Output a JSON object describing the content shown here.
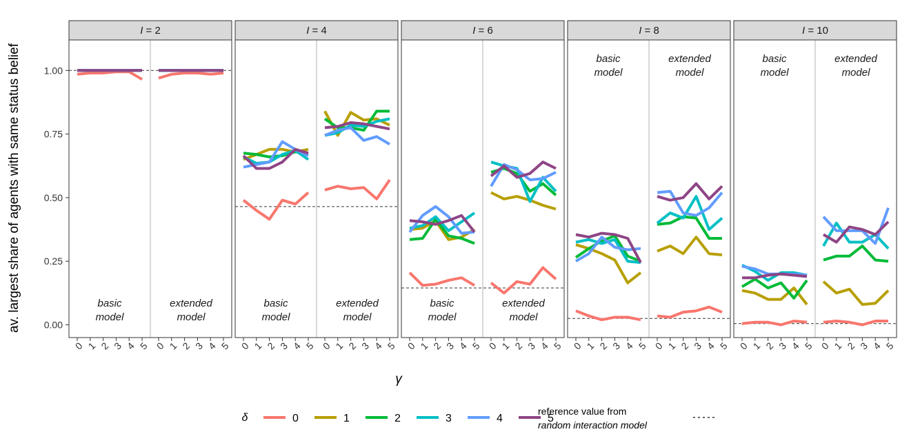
{
  "chart_data": {
    "type": "line",
    "ylabel": "av. largest share of agents with same status belief",
    "xlabel": "γ",
    "ylim": [
      -0.05,
      1.12
    ],
    "yticks": [
      0.0,
      0.25,
      0.5,
      0.75,
      1.0
    ],
    "ytick_labels": [
      "0.00",
      "0.25",
      "0.50",
      "0.75",
      "1.00"
    ],
    "x": [
      0,
      1,
      2,
      3,
      4,
      5
    ],
    "grid": false,
    "legend": {
      "position": "bottom",
      "title": "δ",
      "entries": [
        {
          "name": "0",
          "color": "#F8766D"
        },
        {
          "name": "1",
          "color": "#B79F00"
        },
        {
          "name": "2",
          "color": "#00BA38"
        },
        {
          "name": "3",
          "color": "#00BFC4"
        },
        {
          "name": "4",
          "color": "#619CFF"
        },
        {
          "name": "5",
          "color": "#8E4585"
        }
      ],
      "reference_label_line1": "reference value from",
      "reference_label_line2": "random interaction model"
    },
    "panels": [
      {
        "strip_prefix": "I",
        "strip_value": "= 2",
        "reference": 1.0,
        "label_position": "bottom",
        "submodels": [
          {
            "label_line1": "basic",
            "label_line2": "model",
            "series": [
              {
                "name": "0",
                "values": [
                  0.985,
                  0.99,
                  0.99,
                  0.995,
                  0.995,
                  0.965
                ]
              },
              {
                "name": "1",
                "values": [
                  1.0,
                  1.0,
                  1.0,
                  1.0,
                  1.0,
                  1.0
                ]
              },
              {
                "name": "2",
                "values": [
                  1.0,
                  1.0,
                  1.0,
                  1.0,
                  1.0,
                  1.0
                ]
              },
              {
                "name": "3",
                "values": [
                  1.0,
                  1.0,
                  1.0,
                  1.0,
                  1.0,
                  1.0
                ]
              },
              {
                "name": "4",
                "values": [
                  1.0,
                  1.0,
                  1.0,
                  1.0,
                  1.0,
                  1.0
                ]
              },
              {
                "name": "5",
                "values": [
                  1.0,
                  1.0,
                  1.0,
                  1.0,
                  1.0,
                  1.0
                ]
              }
            ]
          },
          {
            "label_line1": "extended",
            "label_line2": "model",
            "series": [
              {
                "name": "0",
                "values": [
                  0.97,
                  0.985,
                  0.99,
                  0.99,
                  0.985,
                  0.99
                ]
              },
              {
                "name": "1",
                "values": [
                  1.0,
                  1.0,
                  1.0,
                  1.0,
                  1.0,
                  1.0
                ]
              },
              {
                "name": "2",
                "values": [
                  1.0,
                  1.0,
                  1.0,
                  1.0,
                  1.0,
                  1.0
                ]
              },
              {
                "name": "3",
                "values": [
                  1.0,
                  1.0,
                  1.0,
                  1.0,
                  1.0,
                  1.0
                ]
              },
              {
                "name": "4",
                "values": [
                  1.0,
                  1.0,
                  1.0,
                  1.0,
                  1.0,
                  1.0
                ]
              },
              {
                "name": "5",
                "values": [
                  1.0,
                  1.0,
                  1.0,
                  1.0,
                  1.0,
                  1.0
                ]
              }
            ]
          }
        ]
      },
      {
        "strip_prefix": "I",
        "strip_value": "= 4",
        "reference": 0.465,
        "label_position": "bottom",
        "submodels": [
          {
            "label_line1": "basic",
            "label_line2": "model",
            "series": [
              {
                "name": "0",
                "values": [
                  0.49,
                  0.45,
                  0.415,
                  0.49,
                  0.475,
                  0.52
                ]
              },
              {
                "name": "1",
                "values": [
                  0.65,
                  0.67,
                  0.69,
                  0.69,
                  0.68,
                  0.69
                ]
              },
              {
                "name": "2",
                "values": [
                  0.675,
                  0.67,
                  0.66,
                  0.665,
                  0.68,
                  0.675
                ]
              },
              {
                "name": "3",
                "values": [
                  0.66,
                  0.635,
                  0.64,
                  0.67,
                  0.685,
                  0.65
                ]
              },
              {
                "name": "4",
                "values": [
                  0.62,
                  0.63,
                  0.64,
                  0.72,
                  0.69,
                  0.665
                ]
              },
              {
                "name": "5",
                "values": [
                  0.665,
                  0.615,
                  0.615,
                  0.64,
                  0.69,
                  0.675
                ]
              }
            ]
          },
          {
            "label_line1": "extended",
            "label_line2": "model",
            "series": [
              {
                "name": "0",
                "values": [
                  0.53,
                  0.545,
                  0.535,
                  0.54,
                  0.495,
                  0.57
                ]
              },
              {
                "name": "1",
                "values": [
                  0.84,
                  0.745,
                  0.835,
                  0.805,
                  0.81,
                  0.785
                ]
              },
              {
                "name": "2",
                "values": [
                  0.81,
                  0.775,
                  0.775,
                  0.765,
                  0.84,
                  0.84
                ]
              },
              {
                "name": "3",
                "values": [
                  0.745,
                  0.755,
                  0.785,
                  0.78,
                  0.8,
                  0.81
                ]
              },
              {
                "name": "4",
                "values": [
                  0.745,
                  0.765,
                  0.775,
                  0.725,
                  0.74,
                  0.71
                ]
              },
              {
                "name": "5",
                "values": [
                  0.775,
                  0.78,
                  0.795,
                  0.79,
                  0.78,
                  0.77
                ]
              }
            ]
          }
        ]
      },
      {
        "strip_prefix": "I",
        "strip_value": "= 6",
        "reference": 0.145,
        "label_position": "bottom",
        "submodels": [
          {
            "label_line1": "basic",
            "label_line2": "model",
            "series": [
              {
                "name": "0",
                "values": [
                  0.205,
                  0.155,
                  0.16,
                  0.175,
                  0.185,
                  0.155
                ]
              },
              {
                "name": "1",
                "values": [
                  0.375,
                  0.38,
                  0.41,
                  0.335,
                  0.345,
                  0.375
                ]
              },
              {
                "name": "2",
                "values": [
                  0.335,
                  0.34,
                  0.415,
                  0.35,
                  0.34,
                  0.32
                ]
              },
              {
                "name": "3",
                "values": [
                  0.38,
                  0.39,
                  0.425,
                  0.37,
                  0.405,
                  0.44
                ]
              },
              {
                "name": "4",
                "values": [
                  0.365,
                  0.43,
                  0.465,
                  0.425,
                  0.36,
                  0.365
                ]
              },
              {
                "name": "5",
                "values": [
                  0.41,
                  0.405,
                  0.395,
                  0.41,
                  0.43,
                  0.365
                ]
              }
            ]
          },
          {
            "label_line1": "extended",
            "label_line2": "model",
            "series": [
              {
                "name": "0",
                "values": [
                  0.165,
                  0.125,
                  0.17,
                  0.16,
                  0.225,
                  0.18
                ]
              },
              {
                "name": "1",
                "values": [
                  0.52,
                  0.495,
                  0.505,
                  0.49,
                  0.47,
                  0.455
                ]
              },
              {
                "name": "2",
                "values": [
                  0.6,
                  0.615,
                  0.595,
                  0.525,
                  0.555,
                  0.51
                ]
              },
              {
                "name": "3",
                "values": [
                  0.64,
                  0.625,
                  0.615,
                  0.485,
                  0.58,
                  0.525
                ]
              },
              {
                "name": "4",
                "values": [
                  0.545,
                  0.63,
                  0.61,
                  0.57,
                  0.575,
                  0.6
                ]
              },
              {
                "name": "5",
                "values": [
                  0.585,
                  0.625,
                  0.58,
                  0.595,
                  0.64,
                  0.615
                ]
              }
            ]
          }
        ]
      },
      {
        "strip_prefix": "I",
        "strip_value": "= 8",
        "reference": 0.025,
        "label_position": "top",
        "submodels": [
          {
            "label_line1": "basic",
            "label_line2": "model",
            "series": [
              {
                "name": "0",
                "values": [
                  0.055,
                  0.035,
                  0.02,
                  0.03,
                  0.03,
                  0.02
                ]
              },
              {
                "name": "1",
                "values": [
                  0.315,
                  0.3,
                  0.28,
                  0.255,
                  0.165,
                  0.205
                ]
              },
              {
                "name": "2",
                "values": [
                  0.265,
                  0.3,
                  0.33,
                  0.35,
                  0.27,
                  0.25
                ]
              },
              {
                "name": "3",
                "values": [
                  0.325,
                  0.335,
                  0.32,
                  0.335,
                  0.25,
                  0.245
                ]
              },
              {
                "name": "4",
                "values": [
                  0.25,
                  0.28,
                  0.345,
                  0.305,
                  0.295,
                  0.3
                ]
              },
              {
                "name": "5",
                "values": [
                  0.355,
                  0.345,
                  0.36,
                  0.355,
                  0.34,
                  0.245
                ]
              }
            ]
          },
          {
            "label_line1": "extended",
            "label_line2": "model",
            "series": [
              {
                "name": "0",
                "values": [
                  0.035,
                  0.03,
                  0.05,
                  0.055,
                  0.07,
                  0.05
                ]
              },
              {
                "name": "1",
                "values": [
                  0.29,
                  0.31,
                  0.28,
                  0.345,
                  0.28,
                  0.275
                ]
              },
              {
                "name": "2",
                "values": [
                  0.395,
                  0.4,
                  0.425,
                  0.42,
                  0.34,
                  0.34
                ]
              },
              {
                "name": "3",
                "values": [
                  0.4,
                  0.44,
                  0.42,
                  0.505,
                  0.375,
                  0.42
                ]
              },
              {
                "name": "4",
                "values": [
                  0.52,
                  0.525,
                  0.44,
                  0.43,
                  0.46,
                  0.52
                ]
              },
              {
                "name": "5",
                "values": [
                  0.505,
                  0.49,
                  0.5,
                  0.555,
                  0.495,
                  0.545
                ]
              }
            ]
          }
        ]
      },
      {
        "strip_prefix": "I",
        "strip_value": "= 10",
        "reference": 0.005,
        "label_position": "top",
        "submodels": [
          {
            "label_line1": "basic",
            "label_line2": "model",
            "series": [
              {
                "name": "0",
                "values": [
                  0.005,
                  0.01,
                  0.01,
                  0.0,
                  0.015,
                  0.01
                ]
              },
              {
                "name": "1",
                "values": [
                  0.135,
                  0.125,
                  0.1,
                  0.1,
                  0.145,
                  0.08
                ]
              },
              {
                "name": "2",
                "values": [
                  0.15,
                  0.18,
                  0.145,
                  0.165,
                  0.105,
                  0.175
                ]
              },
              {
                "name": "3",
                "values": [
                  0.235,
                  0.21,
                  0.175,
                  0.205,
                  0.205,
                  0.195
                ]
              },
              {
                "name": "4",
                "values": [
                  0.23,
                  0.22,
                  0.2,
                  0.2,
                  0.2,
                  0.195
                ]
              },
              {
                "name": "5",
                "values": [
                  0.185,
                  0.185,
                  0.195,
                  0.2,
                  0.195,
                  0.19
                ]
              }
            ]
          },
          {
            "label_line1": "extended",
            "label_line2": "model",
            "series": [
              {
                "name": "0",
                "values": [
                  0.01,
                  0.015,
                  0.01,
                  0.0,
                  0.015,
                  0.015
                ]
              },
              {
                "name": "1",
                "values": [
                  0.17,
                  0.125,
                  0.14,
                  0.08,
                  0.085,
                  0.135
                ]
              },
              {
                "name": "2",
                "values": [
                  0.255,
                  0.27,
                  0.27,
                  0.31,
                  0.255,
                  0.25
                ]
              },
              {
                "name": "3",
                "values": [
                  0.31,
                  0.4,
                  0.325,
                  0.325,
                  0.355,
                  0.3
                ]
              },
              {
                "name": "4",
                "values": [
                  0.425,
                  0.37,
                  0.37,
                  0.37,
                  0.32,
                  0.46
                ]
              },
              {
                "name": "5",
                "values": [
                  0.355,
                  0.325,
                  0.385,
                  0.375,
                  0.355,
                  0.405
                ]
              }
            ]
          }
        ]
      }
    ]
  }
}
